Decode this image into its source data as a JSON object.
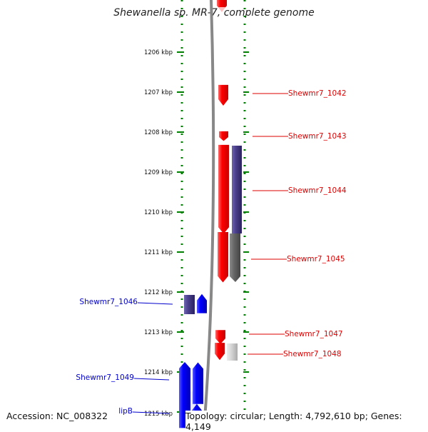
{
  "title": "Shewanella sp. MR-7, complete genome",
  "footer": {
    "accession": "Accession: NC_008322",
    "topology": "Topology: circular; Length: 4,792,610 bp; Genes: 4,149"
  },
  "scale": {
    "unit": "kbp",
    "ticks": [
      {
        "kbp": 1206,
        "label": "1206 kbp"
      },
      {
        "kbp": 1207,
        "label": "1207 kbp"
      },
      {
        "kbp": 1208,
        "label": "1208 kbp"
      },
      {
        "kbp": 1209,
        "label": "1209 kbp"
      },
      {
        "kbp": 1210,
        "label": "1210 kbp"
      },
      {
        "kbp": 1211,
        "label": "1211 kbp"
      },
      {
        "kbp": 1212,
        "label": "1212 kbp"
      },
      {
        "kbp": 1213,
        "label": "1213 kbp"
      },
      {
        "kbp": 1214,
        "label": "1214 kbp"
      },
      {
        "kbp": 1215,
        "label": "1215 kbp"
      }
    ]
  },
  "genes": [
    {
      "id": "Shewmr7_1042",
      "label": "Shewmr7_1042",
      "strand": "+",
      "start_kbp": 1206.82,
      "end_kbp": 1207.34,
      "color": "#ff0000"
    },
    {
      "id": "Shewmr7_1043",
      "label": "Shewmr7_1043",
      "strand": "+",
      "start_kbp": 1207.98,
      "end_kbp": 1208.22,
      "color": "#ff0000"
    },
    {
      "id": "Shewmr7_1044",
      "label": "Shewmr7_1044",
      "strand": "+",
      "start_kbp": 1208.32,
      "end_kbp": 1210.54,
      "color": "#ff0000"
    },
    {
      "id": "Shewmr7_1045",
      "label": "Shewmr7_1045",
      "strand": "+",
      "start_kbp": 1210.5,
      "end_kbp": 1211.76,
      "color": "#ff0000"
    },
    {
      "id": "Shewmr7_1046",
      "label": "Shewmr7_1046",
      "strand": "-",
      "start_kbp": 1212.05,
      "end_kbp": 1212.53,
      "color": "#0000ff"
    },
    {
      "id": "Shewmr7_1047",
      "label": "Shewmr7_1047",
      "strand": "+",
      "start_kbp": 1212.95,
      "end_kbp": 1213.3,
      "color": "#ff0000"
    },
    {
      "id": "Shewmr7_1048",
      "label": "Shewmr7_1048",
      "strand": "+",
      "start_kbp": 1213.27,
      "end_kbp": 1213.7,
      "color": "#ff0000"
    },
    {
      "id": "Shewmr7_1049",
      "label": "Shewmr7_1049",
      "strand": "-",
      "start_kbp": 1213.75,
      "end_kbp": 1215.4,
      "color": "#0000ff"
    },
    {
      "id": "lipB",
      "label": "lipB",
      "strand": "-",
      "start_kbp": 1214.8,
      "end_kbp": 1215.4,
      "color": "#0000ff"
    }
  ],
  "colors": {
    "forward_strand": "#ff0000",
    "reverse_strand": "#0000ff",
    "conserved_track": "#4a3f8a",
    "grey_track": "#666666",
    "track_border": "#008000",
    "genome_line": "#888888"
  }
}
